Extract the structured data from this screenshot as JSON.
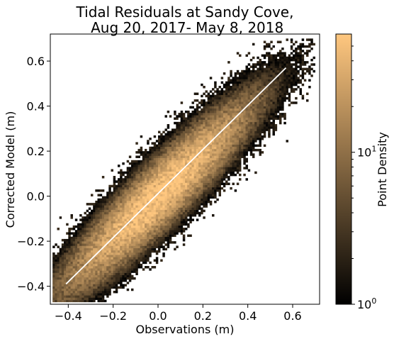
{
  "chart_data": {
    "type": "heatmap",
    "title_lines": [
      "Tidal Residuals at Sandy Cove,",
      " Aug 20, 2017- May 8, 2018"
    ],
    "xlabel": "Observations (m)",
    "ylabel": "Corrected Model (m)",
    "xlim": [
      -0.48,
      0.72
    ],
    "ylim": [
      -0.48,
      0.72
    ],
    "xticks": [
      -0.4,
      -0.2,
      0.0,
      0.2,
      0.4,
      0.6
    ],
    "xtick_labels": [
      "−0.4",
      "−0.2",
      "0.0",
      "0.2",
      "0.4",
      "0.6"
    ],
    "yticks": [
      -0.4,
      -0.2,
      0.0,
      0.2,
      0.4,
      0.6
    ],
    "ytick_labels": [
      "−0.4",
      "−0.2",
      "0.0",
      "0.2",
      "0.4",
      "0.6"
    ],
    "fit_line": {
      "x": [
        -0.41,
        0.57
      ],
      "y": [
        -0.39,
        0.57
      ],
      "color": "#ffffff"
    },
    "colorbar": {
      "label": "Point Density",
      "scale": "log",
      "range": [
        1,
        60
      ],
      "ticks": [
        {
          "value": 1,
          "base": "10",
          "exp": "0"
        },
        {
          "value": 10,
          "base": "10",
          "exp": "1"
        }
      ],
      "colormap": "copper",
      "colors": [
        "#000000",
        "#ffc77f"
      ]
    },
    "density_model": {
      "description_free_params": true,
      "center": [
        0.0,
        0.0
      ],
      "max_density": 60,
      "grid_step": 0.01
    },
    "grid": false,
    "legend": "none"
  }
}
